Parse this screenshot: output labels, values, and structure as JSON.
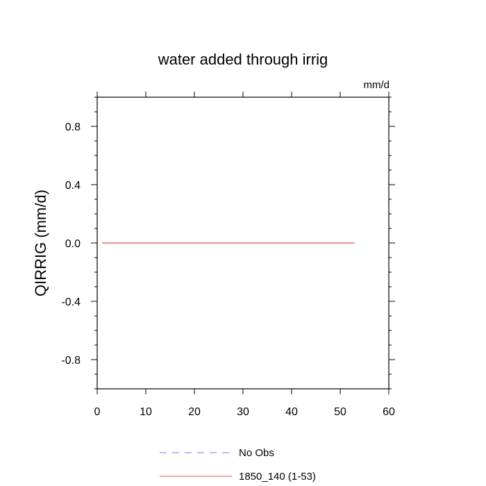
{
  "chart_data": {
    "type": "line",
    "title": "water added through irrig",
    "ylabel": "QIRRIG  (mm/d)",
    "units": "mm/d",
    "xlabel": "",
    "xlim": [
      0,
      60
    ],
    "ylim": [
      -1.0,
      1.0
    ],
    "x_ticks": [
      0,
      10,
      20,
      30,
      40,
      50,
      60
    ],
    "y_ticks": [
      0.8,
      0.4,
      0.0,
      -0.4,
      -0.8
    ],
    "y_tick_labels": [
      "0.8",
      "0.4",
      "0.0",
      "-0.4",
      "-0.8"
    ],
    "grid": false,
    "legend_position": "bottom",
    "series": [
      {
        "name": "No Obs",
        "color": "#7b7bf0",
        "dash": "dashed",
        "x": [],
        "y": []
      },
      {
        "name": "1850_140 (1-53)",
        "color": "#e05050",
        "dash": "solid",
        "x": [
          1,
          53
        ],
        "y": [
          0.0,
          0.0
        ]
      }
    ]
  }
}
